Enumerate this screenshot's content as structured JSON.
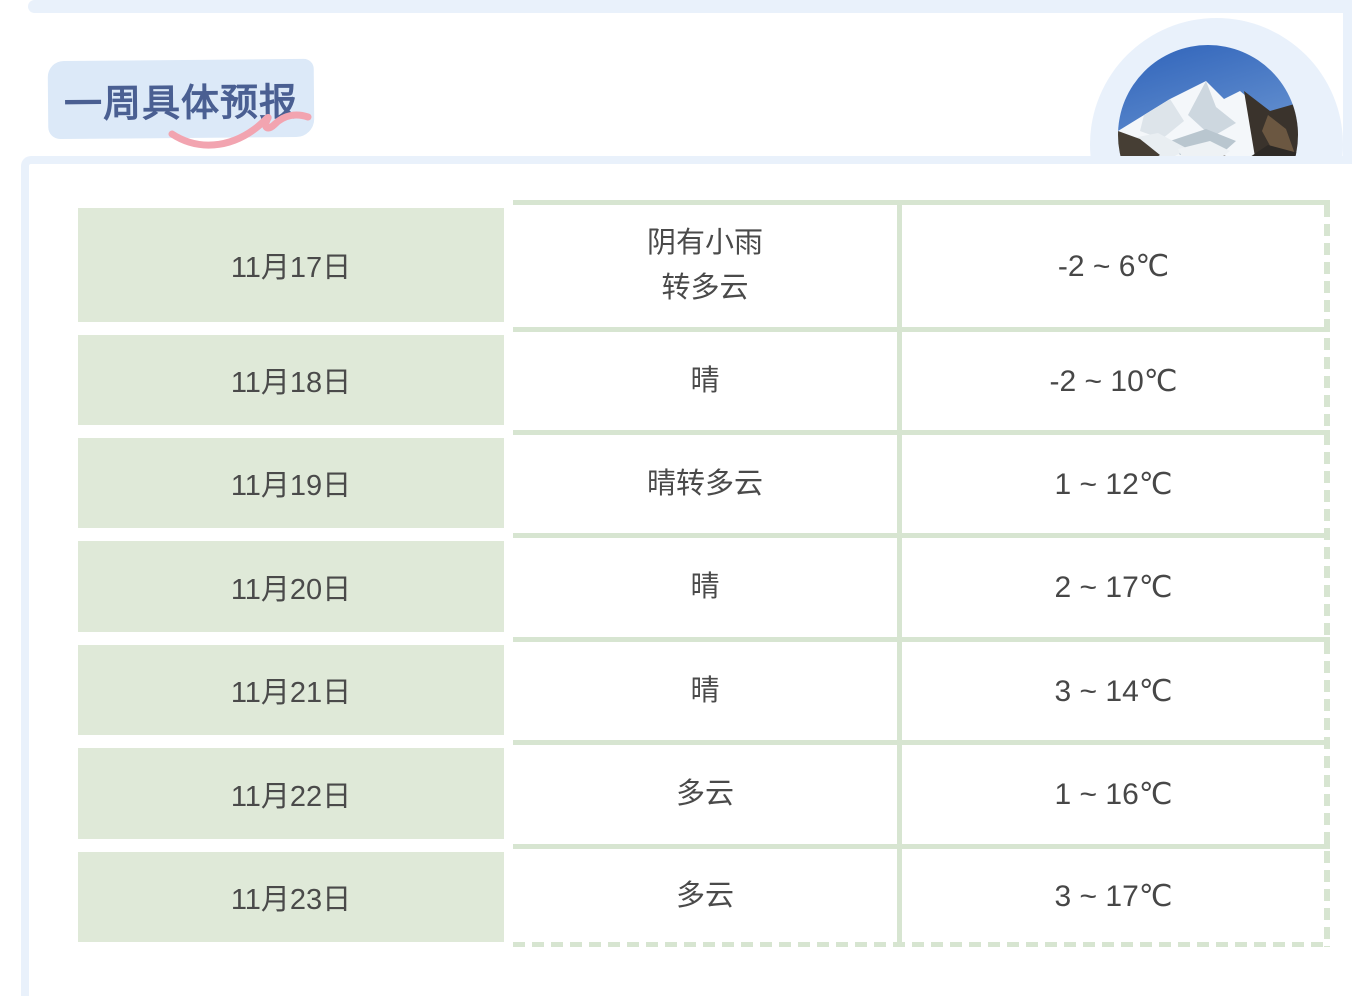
{
  "header": {
    "title": "一周具体预报"
  },
  "hero": {
    "image_name": "snow-mountain-photo"
  },
  "table": {
    "rows": [
      {
        "date": "11月17日",
        "weather": [
          "阴有小雨",
          "转多云"
        ],
        "temp": "-2 ~ 6℃"
      },
      {
        "date": "11月18日",
        "weather": "晴",
        "temp": "-2 ~ 10℃"
      },
      {
        "date": "11月19日",
        "weather": "晴转多云",
        "temp": "1 ~ 12℃"
      },
      {
        "date": "11月20日",
        "weather": "晴",
        "temp": "2 ~ 17℃"
      },
      {
        "date": "11月21日",
        "weather": "晴",
        "temp": "3 ~ 14℃"
      },
      {
        "date": "11月22日",
        "weather": "多云",
        "temp": "1 ~ 16℃"
      },
      {
        "date": "11月23日",
        "weather": "多云",
        "temp": "3 ~ 17℃"
      }
    ]
  },
  "colors": {
    "page_accent_blue": "#e9f1fb",
    "title_highlight": "#dce9f8",
    "title_text": "#4a5f92",
    "squiggle_pink": "#f2a4b0",
    "cell_green": "#dfe9d8",
    "grid_green": "#d7e5d1",
    "body_text": "#4a4a4a"
  }
}
